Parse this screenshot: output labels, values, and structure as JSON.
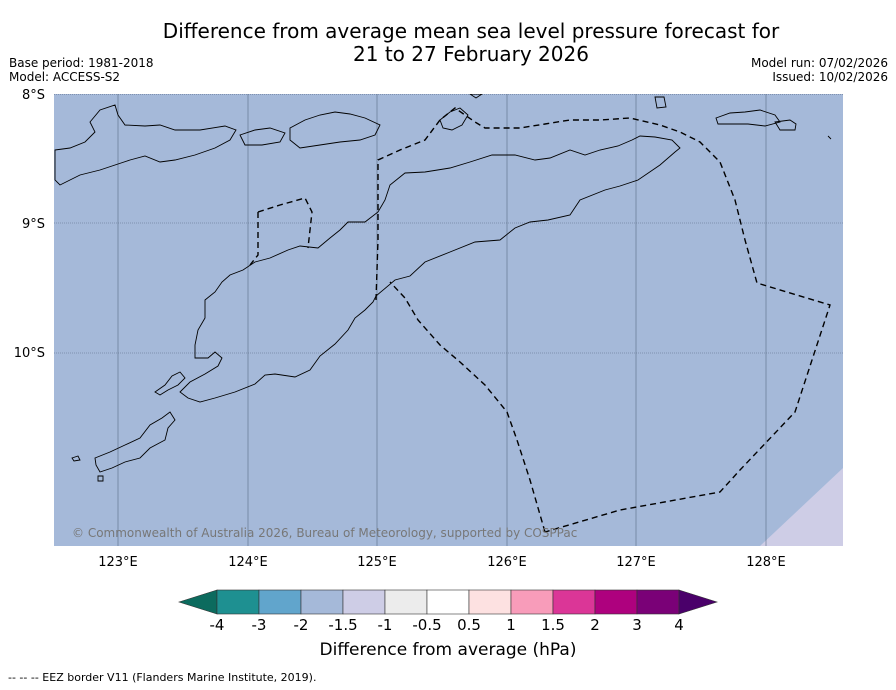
{
  "title": {
    "line1": "Difference from average mean sea level pressure forecast for",
    "line2": "21 to 27 February 2026"
  },
  "meta_left": {
    "base_period": "Base period: 1981-2018",
    "model": "Model: ACCESS-S2"
  },
  "meta_right": {
    "model_run": "Model run: 07/02/2026",
    "issued": "Issued: 10/02/2026"
  },
  "map": {
    "ocean_color": "#a5b9d9",
    "lat_ticks": [
      "8°S",
      "9°S",
      "10°S"
    ],
    "lon_ticks": [
      "123°E",
      "124°E",
      "125°E",
      "126°E",
      "127°E",
      "128°E"
    ],
    "copyright": "© Commonwealth of Australia 2026, Bureau of Meteorology, supported by COSPPac"
  },
  "colorbar": {
    "title": "Difference from average (hPa)",
    "labels": [
      "-4",
      "-3",
      "-2",
      "-1.5",
      "-1",
      "-0.5",
      "0.5",
      "1",
      "1.5",
      "2",
      "3",
      "4"
    ],
    "colors": [
      "#1e9091",
      "#61a5cc",
      "#a5b9d9",
      "#cecde6",
      "#ececec",
      "#ffffff",
      "#fde1e1",
      "#f89cba",
      "#db3697",
      "#ae017e",
      "#7a0177"
    ],
    "under_color": "#0c6b5e",
    "over_color": "#4a006a"
  },
  "footer": "--  --  -- EEZ border V11 (Flanders Marine Institute, 2019)."
}
